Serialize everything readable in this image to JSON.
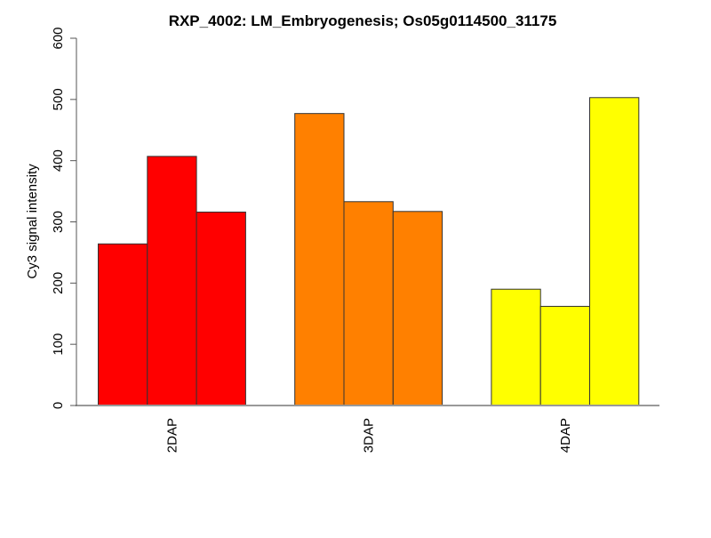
{
  "chart_data": {
    "type": "bar",
    "title": "RXP_4002: LM_Embryogenesis; Os05g0114500_31175",
    "xlabel": "",
    "ylabel": "Cy3 signal intensity",
    "ylim": [
      0,
      600
    ],
    "yticks": [
      "0",
      "100",
      "200",
      "300",
      "400",
      "500",
      "600"
    ],
    "categories": [
      "2DAP",
      "3DAP",
      "4DAP"
    ],
    "groups": [
      {
        "name": "2DAP",
        "color": "#ff0000",
        "values": [
          264,
          407,
          316
        ]
      },
      {
        "name": "3DAP",
        "color": "#ff8000",
        "values": [
          477,
          333,
          317
        ]
      },
      {
        "name": "4DAP",
        "color": "#ffff00",
        "values": [
          190,
          162,
          503
        ]
      }
    ],
    "grid": false,
    "legend": "none"
  }
}
